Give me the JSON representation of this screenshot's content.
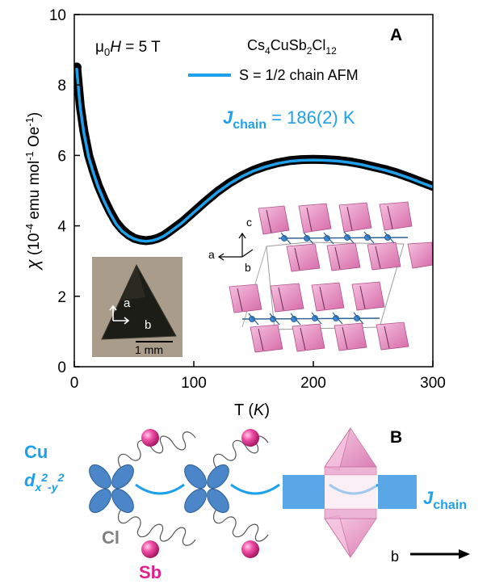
{
  "chart_data": {
    "type": "line",
    "panel_a_label": "A",
    "panel_b_label": "B",
    "field_label": {
      "mu": "μ",
      "sub": "0",
      "H": "H",
      "rest": " = 5 T"
    },
    "compound": {
      "parts": [
        "Cs",
        "4",
        "CuSb",
        "2",
        "Cl",
        "12"
      ]
    },
    "xlabel": {
      "prefix": "T (",
      "var": "K",
      "suffix": ")"
    },
    "ylabel": {
      "chi": "χ",
      "p1": " (10",
      "sup1": "-4",
      "p2": " emu mol",
      "sup2": "-1",
      "p3": " Oe",
      "sup3": "-1",
      "p4": ")"
    },
    "xlim": [
      0,
      300
    ],
    "ylim": [
      0,
      10
    ],
    "x_ticks": [
      0,
      100,
      200,
      300
    ],
    "y_ticks": [
      0,
      2,
      4,
      6,
      8,
      10
    ],
    "legend_position": "top-right",
    "series": [
      {
        "style": "black thick data markers",
        "color": "#000000",
        "x": [
          2,
          5,
          8,
          12,
          16,
          20,
          25,
          30,
          35,
          40,
          45,
          50,
          55,
          60,
          65,
          70,
          75,
          80,
          90,
          100,
          110,
          120,
          130,
          140,
          150,
          160,
          170,
          180,
          190,
          200,
          210,
          220,
          230,
          240,
          250,
          260,
          270,
          280,
          290,
          300
        ],
        "y": [
          8.5,
          7.4,
          6.7,
          6.0,
          5.55,
          5.15,
          4.75,
          4.4,
          4.1,
          3.9,
          3.75,
          3.65,
          3.6,
          3.58,
          3.6,
          3.65,
          3.73,
          3.85,
          4.1,
          4.4,
          4.7,
          4.98,
          5.22,
          5.42,
          5.58,
          5.7,
          5.79,
          5.85,
          5.88,
          5.89,
          5.88,
          5.86,
          5.82,
          5.76,
          5.68,
          5.6,
          5.5,
          5.38,
          5.25,
          5.12
        ]
      },
      {
        "name": "S = 1/2 chain AFM",
        "color": "#1ea0ea",
        "x": [
          2,
          5,
          8,
          12,
          16,
          20,
          25,
          30,
          35,
          40,
          45,
          50,
          55,
          60,
          65,
          70,
          75,
          80,
          90,
          100,
          110,
          120,
          130,
          140,
          150,
          160,
          170,
          180,
          190,
          200,
          210,
          220,
          230,
          240,
          250,
          260,
          270,
          280,
          290,
          300
        ],
        "y": [
          8.45,
          7.35,
          6.65,
          5.95,
          5.5,
          5.1,
          4.7,
          4.35,
          4.05,
          3.85,
          3.72,
          3.63,
          3.58,
          3.56,
          3.58,
          3.63,
          3.71,
          3.83,
          4.08,
          4.38,
          4.68,
          4.96,
          5.2,
          5.4,
          5.56,
          5.68,
          5.77,
          5.83,
          5.86,
          5.87,
          5.86,
          5.84,
          5.8,
          5.74,
          5.66,
          5.58,
          5.48,
          5.36,
          5.23,
          5.1
        ]
      }
    ],
    "legend_label": "S = 1/2 chain AFM",
    "annotation_j": {
      "J": "J",
      "sub": "chain",
      "rest": " = 186(2) K"
    },
    "inset_photo": {
      "scale_label": "1 mm",
      "axis_a": "a",
      "axis_b": "b"
    },
    "inset_structure": {
      "axis_a": "a",
      "axis_b": "b",
      "axis_c": "c"
    }
  },
  "panel_b": {
    "cu_label": "Cu",
    "orbital": {
      "d": "d",
      "sub1": "x",
      "sup1": "2",
      "mid": "-y",
      "sup2": "2"
    },
    "cl_label": "Cl",
    "sb_label": "Sb",
    "j_label": {
      "J": "J",
      "sub": "chain"
    },
    "b_axis_label": "b"
  },
  "colors": {
    "fit_blue": "#1ea0ea",
    "orbital_blue": "#4a86c8",
    "sb_pink": "#e0208c",
    "octahedron_pink": "#e88fc4",
    "cl_gray": "#808080"
  }
}
